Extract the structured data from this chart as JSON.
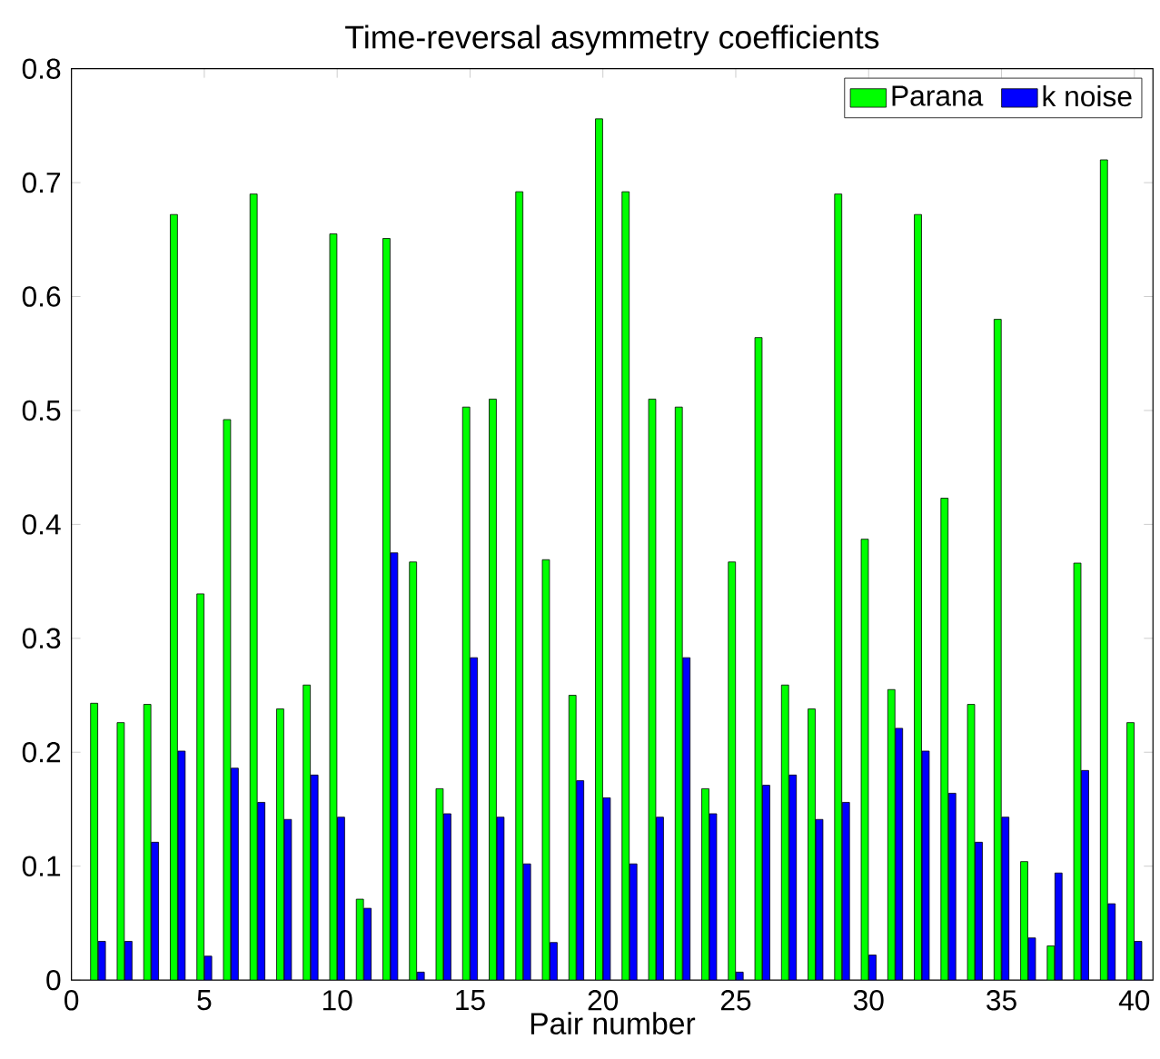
{
  "chart_data": {
    "type": "bar",
    "title": "Time-reversal asymmetry coefficients",
    "xlabel": "Pair number",
    "x": [
      1,
      2,
      3,
      4,
      5,
      6,
      7,
      8,
      9,
      10,
      11,
      12,
      13,
      14,
      15,
      16,
      17,
      18,
      19,
      20,
      21,
      22,
      23,
      24,
      25,
      26,
      27,
      28,
      29,
      30,
      31,
      32,
      33,
      34,
      35,
      36,
      37,
      38,
      39,
      40
    ],
    "series": [
      {
        "name": "Parana",
        "color": "#00ff00",
        "values": [
          0.243,
          0.226,
          0.242,
          0.672,
          0.339,
          0.492,
          0.69,
          0.238,
          0.259,
          0.655,
          0.071,
          0.651,
          0.367,
          0.168,
          0.503,
          0.51,
          0.692,
          0.369,
          0.25,
          0.756,
          0.692,
          0.51,
          0.503,
          0.168,
          0.367,
          0.564,
          0.259,
          0.238,
          0.69,
          0.387,
          0.255,
          0.672,
          0.423,
          0.242,
          0.58,
          0.104,
          0.03,
          0.366,
          0.72,
          0.226
        ]
      },
      {
        "name": "k noise",
        "color": "#0000ff",
        "values": [
          0.034,
          0.034,
          0.121,
          0.201,
          0.021,
          0.186,
          0.156,
          0.141,
          0.18,
          0.143,
          0.063,
          0.375,
          0.007,
          0.146,
          0.283,
          0.143,
          0.102,
          0.033,
          0.175,
          0.16,
          0.102,
          0.143,
          0.283,
          0.146,
          0.007,
          0.171,
          0.18,
          0.141,
          0.156,
          0.022,
          0.221,
          0.201,
          0.164,
          0.121,
          0.143,
          0.037,
          0.094,
          0.184,
          0.067,
          0.034
        ]
      }
    ],
    "xlim": [
      0,
      40.7
    ],
    "xticks": [
      0,
      5,
      10,
      15,
      20,
      25,
      30,
      35,
      40
    ],
    "ylim": [
      0,
      0.8
    ],
    "yticks": [
      0,
      0.1,
      0.2,
      0.3,
      0.4,
      0.5,
      0.6,
      0.7,
      0.8
    ],
    "legend": "top right"
  }
}
